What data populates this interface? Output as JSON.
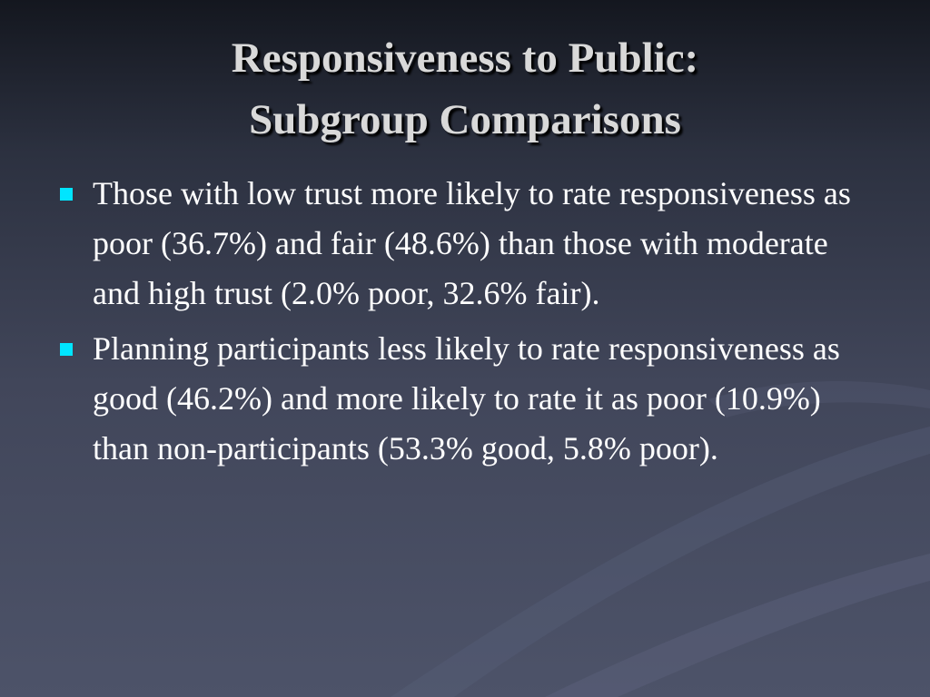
{
  "slide": {
    "title": [
      "Responsiveness to Public:",
      "Subgroup Comparisons"
    ],
    "bullets": [
      "Those with low trust more likely to rate responsiveness as poor (36.7%) and fair (48.6%) than those with moderate and high trust (2.0% poor, 32.6% fair).",
      "Planning participants less likely to rate responsiveness as good (46.2%) and more likely to rate it as poor (10.9%) than non-participants (53.3% good, 5.8% poor)."
    ]
  }
}
